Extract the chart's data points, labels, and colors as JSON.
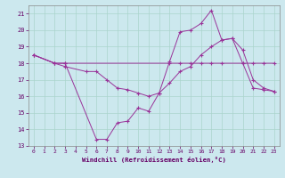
{
  "xlabel": "Windchill (Refroidissement éolien,°C)",
  "bg_color": "#cce8ee",
  "grid_color": "#aad4cc",
  "line_color": "#993399",
  "xlim": [
    -0.5,
    23.5
  ],
  "ylim": [
    13,
    21.5
  ],
  "yticks": [
    13,
    14,
    15,
    16,
    17,
    18,
    19,
    20,
    21
  ],
  "xticks": [
    0,
    1,
    2,
    3,
    4,
    5,
    6,
    7,
    8,
    9,
    10,
    11,
    12,
    13,
    14,
    15,
    16,
    17,
    18,
    19,
    20,
    21,
    22,
    23
  ],
  "line1_x": [
    0,
    2,
    3,
    13,
    14,
    15,
    16,
    17,
    18,
    20,
    21,
    22,
    23
  ],
  "line1_y": [
    18.5,
    18.0,
    18.0,
    18.0,
    18.0,
    18.0,
    18.0,
    18.0,
    18.0,
    18.0,
    18.0,
    18.0,
    18.0
  ],
  "line2_x": [
    0,
    2,
    3,
    5,
    6,
    7,
    8,
    9,
    10,
    11,
    12,
    13,
    14,
    15,
    16,
    17,
    18,
    19,
    20,
    21,
    22,
    23
  ],
  "line2_y": [
    18.5,
    18.0,
    17.8,
    17.5,
    17.5,
    17.0,
    16.5,
    16.4,
    16.2,
    16.0,
    16.2,
    16.8,
    17.5,
    17.8,
    18.5,
    19.0,
    19.4,
    19.5,
    18.8,
    17.0,
    16.5,
    16.3
  ],
  "line3_x": [
    0,
    2,
    3,
    6,
    7,
    8,
    9,
    10,
    11,
    12,
    13,
    14,
    15,
    16,
    17,
    18,
    19,
    20,
    21,
    22,
    23
  ],
  "line3_y": [
    18.5,
    18.0,
    18.0,
    13.4,
    13.4,
    14.4,
    14.5,
    15.3,
    15.1,
    16.2,
    18.1,
    19.9,
    20.0,
    20.4,
    21.2,
    19.4,
    19.5,
    18.0,
    16.5,
    16.4,
    16.3
  ]
}
